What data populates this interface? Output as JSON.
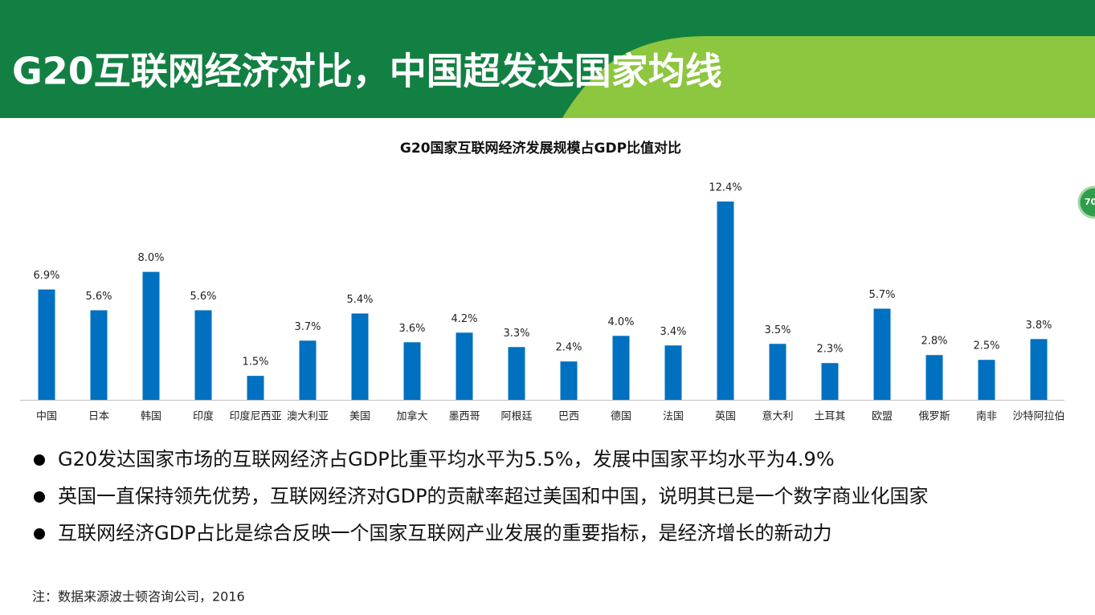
{
  "header": {
    "title": "G20互联网经济对比，中国超发达国家均线"
  },
  "chart_data": {
    "type": "bar",
    "title": "G20国家互联网经济发展规模占GDP比值对比",
    "categories": [
      "中国",
      "日本",
      "韩国",
      "印度",
      "印度尼西亚",
      "澳大利亚",
      "美国",
      "加拿大",
      "墨西哥",
      "阿根廷",
      "巴西",
      "德国",
      "法国",
      "英国",
      "意大利",
      "土耳其",
      "欧盟",
      "俄罗斯",
      "南非",
      "沙特阿拉伯"
    ],
    "values": [
      6.9,
      5.6,
      8.0,
      5.6,
      1.5,
      3.7,
      5.4,
      3.6,
      4.2,
      3.3,
      2.4,
      4.0,
      3.4,
      12.4,
      3.5,
      2.3,
      5.7,
      2.8,
      2.5,
      3.8
    ],
    "value_labels": [
      "6.9%",
      "5.6%",
      "8.0%",
      "5.6%",
      "1.5%",
      "3.7%",
      "5.4%",
      "3.6%",
      "4.2%",
      "3.3%",
      "2.4%",
      "4.0%",
      "3.4%",
      "12.4%",
      "3.5%",
      "2.3%",
      "5.7%",
      "2.8%",
      "2.5%",
      "3.8%"
    ],
    "color": "#0070c0"
  },
  "bullets": [
    "G20发达国家市场的互联网经济占GDP比重平均水平为5.5%，发展中国家平均水平为4.9%",
    "英国一直保持领先优势，互联网经济对GDP的贡献率超过美国和中国，说明其已是一个数字商业化国家",
    "互联网经济GDP占比是综合反映一个国家互联网产业发展的重要指标，是经济增长的新动力"
  ],
  "note": "注：数据来源波士顿咨询公司，2016",
  "badge": "70"
}
